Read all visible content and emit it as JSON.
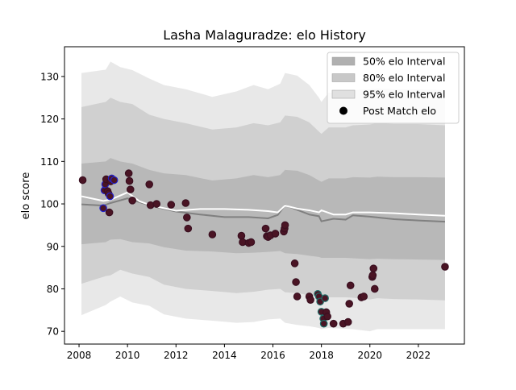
{
  "chart_data": {
    "type": "line",
    "title": "Lasha Malaguradze: elo History",
    "xlabel": "",
    "ylabel": "elo score",
    "xlim": [
      2007.4,
      2023.9
    ],
    "ylim": [
      67,
      137
    ],
    "xticks": [
      2008,
      2010,
      2012,
      2014,
      2016,
      2018,
      2020,
      2022
    ],
    "yticks": [
      70,
      80,
      90,
      100,
      110,
      120,
      130
    ],
    "legend_position": "top-right",
    "legend": [
      {
        "label": "50% elo Interval",
        "color": "#b0b0b0",
        "kind": "patch"
      },
      {
        "label": "80% elo Interval",
        "color": "#c8c8c8",
        "kind": "patch"
      },
      {
        "label": "95% elo Interval",
        "color": "#e0e0e0",
        "kind": "patch"
      },
      {
        "label": "Post Match elo",
        "color": "#000000",
        "kind": "marker"
      }
    ],
    "bands": {
      "x": [
        2008.1,
        2009.1,
        2009.3,
        2009.7,
        2010.2,
        2010.9,
        2011.5,
        2012.4,
        2013.5,
        2014.5,
        2015.2,
        2015.8,
        2016.3,
        2016.5,
        2017.0,
        2017.5,
        2017.9,
        2018.0,
        2018.3,
        2019.0,
        2019.3,
        2020.0,
        2020.3,
        2021.0,
        2022.0,
        2023.1
      ],
      "band95": {
        "upper": [
          130.8,
          131.6,
          133.5,
          132.2,
          131.5,
          129.5,
          128.0,
          127.0,
          125.2,
          126.5,
          128.0,
          127.0,
          128.3,
          130.8,
          130.2,
          128.0,
          125.0,
          124.0,
          126.2,
          126.0,
          126.8,
          127.0,
          127.2,
          127.0,
          127.0,
          126.8
        ],
        "lower": [
          73.8,
          76.2,
          77.0,
          78.2,
          76.8,
          76.0,
          74.0,
          73.0,
          72.5,
          72.0,
          72.2,
          72.8,
          73.0,
          72.0,
          71.5,
          71.2,
          70.8,
          70.5,
          70.8,
          70.6,
          70.5,
          70.0,
          70.5,
          70.5,
          70.5,
          70.5
        ]
      },
      "band80": {
        "upper": [
          122.8,
          124.0,
          125.0,
          124.0,
          123.5,
          121.0,
          120.0,
          119.0,
          117.5,
          118.0,
          119.0,
          118.5,
          119.2,
          120.8,
          120.5,
          119.2,
          117.0,
          116.5,
          118.0,
          118.0,
          118.5,
          118.7,
          119.0,
          118.8,
          118.8,
          118.5
        ],
        "lower": [
          81.2,
          83.0,
          83.2,
          84.5,
          83.6,
          82.8,
          81.0,
          80.0,
          79.5,
          79.0,
          79.3,
          79.8,
          80.0,
          79.2,
          79.0,
          78.5,
          78.2,
          78.0,
          78.0,
          78.0,
          77.9,
          77.5,
          77.8,
          77.6,
          77.5,
          77.3
        ]
      },
      "band50": {
        "upper": [
          109.5,
          110.0,
          110.8,
          110.0,
          109.5,
          108.0,
          107.2,
          106.8,
          105.5,
          106.0,
          106.8,
          106.3,
          106.8,
          108.0,
          107.8,
          106.8,
          105.5,
          105.2,
          106.0,
          106.0,
          106.3,
          106.2,
          106.4,
          106.3,
          106.3,
          106.2
        ],
        "lower": [
          90.5,
          91.0,
          91.6,
          91.7,
          91.0,
          90.7,
          89.8,
          89.0,
          88.8,
          88.4,
          88.5,
          88.7,
          88.9,
          88.4,
          88.2,
          87.8,
          87.5,
          87.3,
          87.3,
          87.3,
          87.2,
          87.0,
          87.1,
          87.0,
          86.9,
          86.8
        ]
      }
    },
    "mean_line": {
      "x": [
        2008.1,
        2009.0,
        2009.3,
        2010.0,
        2010.5,
        2011.0,
        2012.0,
        2013.0,
        2014.0,
        2015.0,
        2015.8,
        2016.2,
        2016.5,
        2017.0,
        2017.5,
        2017.9,
        2018.0,
        2018.5,
        2019.0,
        2019.3,
        2020.0,
        2021.0,
        2022.0,
        2023.1
      ],
      "y": [
        99.9,
        99.6,
        100.2,
        101.3,
        100.4,
        99.5,
        98.2,
        97.5,
        96.9,
        96.9,
        96.6,
        97.4,
        99.7,
        98.6,
        97.5,
        97.1,
        95.9,
        96.5,
        96.3,
        97.3,
        97.0,
        96.4,
        96.1,
        95.8
      ]
    },
    "series": [
      {
        "x": [
          2008.1,
          2009.0,
          2009.3,
          2010.0,
          2010.5,
          2011.0,
          2012.0,
          2013.0,
          2014.0,
          2015.0,
          2015.8,
          2016.2,
          2016.5,
          2017.0,
          2017.5,
          2017.9,
          2018.0,
          2018.5,
          2019.0,
          2019.3,
          2020.0,
          2021.0,
          2022.0,
          2023.1
        ],
        "y": [
          101.8,
          100.7,
          101.0,
          102.7,
          100.6,
          99.6,
          98.4,
          98.8,
          98.8,
          98.6,
          98.3,
          98.0,
          99.6,
          98.9,
          98.5,
          98.0,
          98.5,
          97.5,
          97.5,
          98.0,
          98.0,
          97.8,
          97.5,
          97.2
        ]
      }
    ],
    "points": [
      {
        "x": 2008.15,
        "y": 105.6,
        "edge": "#3a0f20"
      },
      {
        "x": 2009.0,
        "y": 99.0,
        "edge": "#2222cc"
      },
      {
        "x": 2009.05,
        "y": 103.2,
        "edge": "#2222cc"
      },
      {
        "x": 2009.08,
        "y": 104.6,
        "edge": "#2222cc"
      },
      {
        "x": 2009.12,
        "y": 105.8,
        "edge": "#3a0f20"
      },
      {
        "x": 2009.18,
        "y": 103.0,
        "edge": "#3a0f20"
      },
      {
        "x": 2009.22,
        "y": 102.4,
        "edge": "#3a0f20"
      },
      {
        "x": 2009.25,
        "y": 98.0,
        "edge": "#3a0f20"
      },
      {
        "x": 2009.28,
        "y": 101.8,
        "edge": "#2222cc"
      },
      {
        "x": 2009.3,
        "y": 105.3,
        "edge": "#3a0f20"
      },
      {
        "x": 2009.35,
        "y": 106.0,
        "edge": "#2222cc"
      },
      {
        "x": 2009.45,
        "y": 105.6,
        "edge": "#2222cc"
      },
      {
        "x": 2010.05,
        "y": 107.2,
        "edge": "#3a0f20"
      },
      {
        "x": 2010.08,
        "y": 105.4,
        "edge": "#3a0f20"
      },
      {
        "x": 2010.12,
        "y": 103.4,
        "edge": "#3a0f20"
      },
      {
        "x": 2010.2,
        "y": 100.8,
        "edge": "#3a0f20"
      },
      {
        "x": 2010.9,
        "y": 104.6,
        "edge": "#3a0f20"
      },
      {
        "x": 2010.95,
        "y": 99.7,
        "edge": "#3a0f20"
      },
      {
        "x": 2011.2,
        "y": 100.0,
        "edge": "#3a0f20"
      },
      {
        "x": 2011.8,
        "y": 99.8,
        "edge": "#3a0f20"
      },
      {
        "x": 2012.4,
        "y": 100.2,
        "edge": "#3a0f20"
      },
      {
        "x": 2012.45,
        "y": 96.8,
        "edge": "#3a0f20"
      },
      {
        "x": 2012.5,
        "y": 94.2,
        "edge": "#3a0f20"
      },
      {
        "x": 2013.5,
        "y": 92.8,
        "edge": "#3a0f20"
      },
      {
        "x": 2014.7,
        "y": 92.5,
        "edge": "#3a0f20"
      },
      {
        "x": 2014.75,
        "y": 91.0,
        "edge": "#3a0f20"
      },
      {
        "x": 2015.0,
        "y": 90.8,
        "edge": "#3a0f20"
      },
      {
        "x": 2015.1,
        "y": 91.0,
        "edge": "#3a0f20"
      },
      {
        "x": 2015.7,
        "y": 94.2,
        "edge": "#3a0f20"
      },
      {
        "x": 2015.75,
        "y": 92.4,
        "edge": "#3a0f20"
      },
      {
        "x": 2015.8,
        "y": 92.2,
        "edge": "#3a0f20"
      },
      {
        "x": 2015.9,
        "y": 92.6,
        "edge": "#3a0f20"
      },
      {
        "x": 2016.1,
        "y": 93.0,
        "edge": "#3a0f20"
      },
      {
        "x": 2016.45,
        "y": 93.5,
        "edge": "#3a0f20"
      },
      {
        "x": 2016.48,
        "y": 94.2,
        "edge": "#3a0f20"
      },
      {
        "x": 2016.5,
        "y": 95.0,
        "edge": "#3a0f20"
      },
      {
        "x": 2016.9,
        "y": 86.0,
        "edge": "#3a0f20"
      },
      {
        "x": 2016.95,
        "y": 81.6,
        "edge": "#3a0f20"
      },
      {
        "x": 2017.0,
        "y": 78.2,
        "edge": "#3a0f20"
      },
      {
        "x": 2017.5,
        "y": 78.2,
        "edge": "#3a0f20"
      },
      {
        "x": 2017.55,
        "y": 77.4,
        "edge": "#3a0f20"
      },
      {
        "x": 2017.85,
        "y": 78.8,
        "edge": "#1f6b66"
      },
      {
        "x": 2017.9,
        "y": 78.2,
        "edge": "#1f6b66"
      },
      {
        "x": 2017.95,
        "y": 77.0,
        "edge": "#1f6b66"
      },
      {
        "x": 2018.0,
        "y": 74.6,
        "edge": "#1f6b66"
      },
      {
        "x": 2018.08,
        "y": 73.0,
        "edge": "#1f6b66"
      },
      {
        "x": 2018.1,
        "y": 71.8,
        "edge": "#1f6b66"
      },
      {
        "x": 2018.15,
        "y": 77.8,
        "edge": "#1f6b66"
      },
      {
        "x": 2018.2,
        "y": 74.5,
        "edge": "#3a0f20"
      },
      {
        "x": 2018.25,
        "y": 73.5,
        "edge": "#3a0f20"
      },
      {
        "x": 2018.5,
        "y": 71.8,
        "edge": "#3a0f20"
      },
      {
        "x": 2018.9,
        "y": 71.8,
        "edge": "#3a0f20"
      },
      {
        "x": 2019.1,
        "y": 72.2,
        "edge": "#3a0f20"
      },
      {
        "x": 2019.15,
        "y": 76.5,
        "edge": "#3a0f20"
      },
      {
        "x": 2019.2,
        "y": 80.8,
        "edge": "#3a0f20"
      },
      {
        "x": 2019.65,
        "y": 78.0,
        "edge": "#3a0f20"
      },
      {
        "x": 2019.75,
        "y": 78.2,
        "edge": "#3a0f20"
      },
      {
        "x": 2020.1,
        "y": 82.8,
        "edge": "#3a0f20"
      },
      {
        "x": 2020.12,
        "y": 83.2,
        "edge": "#3a0f20"
      },
      {
        "x": 2020.15,
        "y": 84.8,
        "edge": "#3a0f20"
      },
      {
        "x": 2020.2,
        "y": 80.0,
        "edge": "#3a0f20"
      },
      {
        "x": 2023.1,
        "y": 85.2,
        "edge": "#3a0f20"
      }
    ],
    "colors": {
      "band95": "#e0e0e0",
      "band80": "#c8c8c8",
      "band50": "#b0b0b0",
      "mean_line": "#808080",
      "post_match_line": "#ffffff",
      "point_fill": "#4a1424"
    }
  }
}
